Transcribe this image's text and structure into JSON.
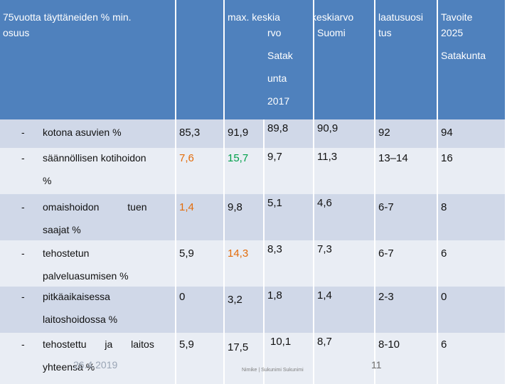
{
  "header": {
    "col1": [
      "75vuotta täyttäneiden % min.",
      "osuus"
    ],
    "col1b": "",
    "col_min": "",
    "col_max": [
      "max. keskia",
      "rvo",
      "Satak",
      "unta",
      "2017"
    ],
    "col_keskia_a": "",
    "col_keskiarvo": [
      "keskiarvo",
      "Suomi"
    ],
    "col_laatusuosi": [
      "laatusuosi",
      "tus"
    ],
    "col_tavoite": [
      "Tavoite",
      "2025",
      "Satakunta"
    ]
  },
  "rows": [
    {
      "dash": "-",
      "label": [
        "kotona asuvien %"
      ],
      "min": "85,3",
      "max": "91,9",
      "keskiarvo_satakunta": "89,8",
      "keskiarvo_suomi": "90,9",
      "laatusuositus": "92",
      "tavoite": "94",
      "min_color": "",
      "max_color": ""
    },
    {
      "dash": "-",
      "label": [
        "säännöllisen kotihoidon",
        "%"
      ],
      "min": "7,6",
      "max": "15,7",
      "keskiarvo_satakunta": "9,7",
      "keskiarvo_suomi": "11,3",
      "laatusuositus": "13–14",
      "tavoite": "16",
      "min_color": "orange",
      "max_color": "green"
    },
    {
      "dash": "-",
      "label": [
        "omaishoidon tuen",
        "saajat %"
      ],
      "min": "1,4",
      "max": "9,8",
      "keskiarvo_satakunta": "5,1",
      "keskiarvo_suomi": "4,6",
      "laatusuositus": "6-7",
      "tavoite": "8",
      "min_color": "orange",
      "max_color": ""
    },
    {
      "dash": "-",
      "label": [
        "tehostetun",
        "palveluasumisen %"
      ],
      "min": "5,9",
      "max": "14,3",
      "keskiarvo_satakunta": "8,3",
      "keskiarvo_suomi": "7,3",
      "laatusuositus": "6-7",
      "tavoite": "6",
      "min_color": "",
      "max_color": "orange"
    },
    {
      "dash": "-",
      "label": [
        "pitkäaikaisessa",
        "laitoshoidossa %"
      ],
      "min": "0",
      "max": "3,2",
      "keskiarvo_satakunta": "1,8",
      "keskiarvo_suomi": "1,4",
      "laatusuositus": "2-3",
      "tavoite": "0",
      "min_color": "",
      "max_color": ""
    },
    {
      "dash": "-",
      "label": [
        "tehostettu ja laitos",
        "yhteensä %"
      ],
      "min": "5,9",
      "max": "17,5",
      "keskiarvo_satakunta": "10,1",
      "keskiarvo_suomi": "8,7",
      "laatusuositus": "8-10",
      "tavoite": "6",
      "min_color": "",
      "max_color": ""
    }
  ],
  "footer": {
    "date": "26.4.2019",
    "title": "Nimike | Sukunimi Sukunimi",
    "page": "11"
  },
  "colors": {
    "header_bg": "#4f81bd",
    "row_odd": "#d0d8e8",
    "row_even": "#e9edf4",
    "orange": "#e36c0a",
    "green": "#00a04a"
  }
}
